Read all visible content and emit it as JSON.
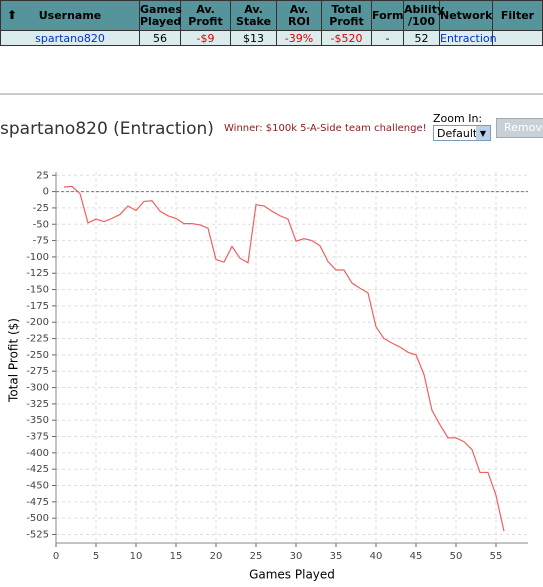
{
  "table": {
    "header": [
      "Username",
      "Games Played",
      "Av. Profit",
      "Av. Stake",
      "Av. ROI",
      "Total Profit",
      "Form",
      "Ability /100",
      "Network",
      "Filter"
    ],
    "rows": [
      [
        "spartano820",
        "56",
        "-$9",
        "$13",
        "-39%",
        "-$520",
        "-",
        "52",
        "Entraction"
      ]
    ]
  },
  "controls": {
    "zoom_label": "Zoom In:",
    "zoom_value": "Default",
    "button": "Remove"
  },
  "chart_data": {
    "type": "line",
    "title": "spartano820 (Entraction)",
    "annotation": "Winner: $100k 5-A-Side team challenge!",
    "x_label": "Games Played",
    "y_label": "Total Profit ($)",
    "color": "#f06060",
    "grid": true,
    "hlines": [
      0
    ],
    "hline_color": "#6a6ae0",
    "x": [
      1,
      2,
      3,
      4,
      5,
      6,
      7,
      8,
      9,
      10,
      11,
      12,
      13,
      14,
      15,
      16,
      17,
      18,
      19,
      20,
      21,
      22,
      23,
      24,
      25,
      26,
      27,
      28,
      29,
      30,
      31,
      32,
      33,
      34,
      35,
      36,
      37,
      38,
      39,
      40,
      41,
      42,
      43,
      44,
      45,
      46,
      47,
      48,
      49,
      50,
      51,
      52,
      53,
      54,
      55,
      56
    ],
    "values": [
      7,
      8,
      -3,
      -48,
      -42,
      -46,
      -41,
      -35,
      -22,
      -29,
      -15,
      -14,
      -30,
      -37,
      -41,
      -49,
      -49,
      -51,
      -56,
      -104,
      -108,
      -84,
      -102,
      -109,
      -20,
      -22,
      -30,
      -37,
      -42,
      -76,
      -72,
      -75,
      -83,
      -107,
      -120,
      -120,
      -140,
      -148,
      -155,
      -207,
      -225,
      -232,
      -238,
      -246,
      -250,
      -280,
      -335,
      -357,
      -377,
      -377,
      -383,
      -395,
      -430,
      -430,
      -465,
      -520
    ],
    "xlim": [
      0,
      59
    ],
    "xticks": [
      0,
      5,
      10,
      15,
      20,
      25,
      30,
      35,
      40,
      45,
      50,
      55
    ],
    "ylim": [
      -538,
      30
    ],
    "yticks": [
      25,
      0,
      -25,
      -50,
      -75,
      -100,
      -125,
      -150,
      -175,
      -200,
      -225,
      -250,
      -275,
      -300,
      -325,
      -350,
      -375,
      -400,
      -425,
      -450,
      -475,
      -500,
      -525
    ]
  }
}
